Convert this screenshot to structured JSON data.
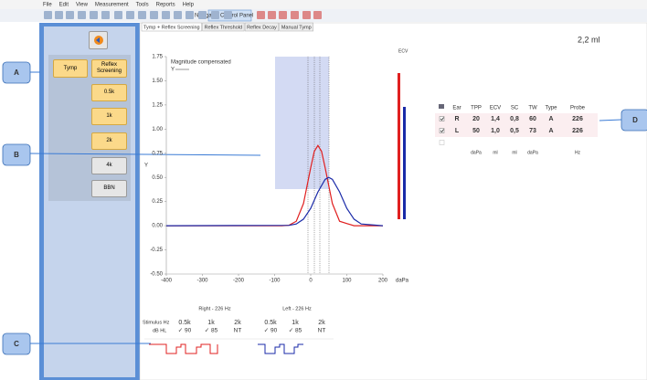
{
  "menu": [
    "File",
    "Edit",
    "View",
    "Measurement",
    "Tools",
    "Reports",
    "Help"
  ],
  "toolbar": {
    "navigator": "Navigator",
    "control_panel": "Control Panel"
  },
  "tabs": [
    "Tymp + Reflex Screening",
    "Reflex Threshold",
    "Reflex Decay",
    "Manual Tymp"
  ],
  "left_panel": {
    "mode_buttons": [
      "Tymp",
      "Reflex Screening"
    ],
    "stimulus_buttons": [
      "0.5k",
      "1k",
      "2k",
      "4k",
      "BBN"
    ]
  },
  "callouts": [
    "A",
    "B",
    "C",
    "D"
  ],
  "volume": "2,2 ml",
  "chart_data": {
    "type": "line",
    "annotations": [
      "Magnitude compensated",
      "Y"
    ],
    "y_label": "Y",
    "x_unit": "daPa",
    "ecv_label": "ECV",
    "series": [
      {
        "name": "Right",
        "color": "#e02020",
        "x": [
          -400,
          -80,
          -60,
          -40,
          -20,
          0,
          10,
          20,
          30,
          40,
          60,
          80,
          120,
          200
        ],
        "values": [
          0,
          0,
          0.005,
          0.046,
          0.23,
          0.6,
          0.77,
          0.83,
          0.77,
          0.6,
          0.23,
          0.046,
          0,
          0
        ]
      },
      {
        "name": "Left",
        "color": "#1a2aa8",
        "x": [
          -400,
          -60,
          -40,
          -20,
          0,
          20,
          40,
          50,
          60,
          80,
          100,
          120,
          140,
          200
        ],
        "values": [
          0,
          0.004,
          0.018,
          0.068,
          0.18,
          0.35,
          0.48,
          0.5,
          0.48,
          0.35,
          0.18,
          0.068,
          0.018,
          0
        ]
      }
    ],
    "xlim": [
      -400,
      200
    ],
    "ylim": [
      -0.5,
      1.75
    ],
    "xticks": [
      -400,
      -300,
      -200,
      -100,
      0,
      100,
      200
    ],
    "yticks": [
      {
        "value": -0.5,
        "label": "-0.50"
      },
      {
        "value": -0.25,
        "label": "-0.25"
      },
      {
        "value": 0,
        "label": "0.00"
      },
      {
        "value": 0.25,
        "label": "0.25"
      },
      {
        "value": 0.5,
        "label": "0.50"
      },
      {
        "value": 0.75,
        "label": "0.75"
      },
      {
        "value": 1,
        "label": "1.00"
      },
      {
        "value": 1.25,
        "label": "1.25"
      },
      {
        "value": 1.5,
        "label": "1.50"
      },
      {
        "value": 1.75,
        "label": "1.75"
      }
    ]
  },
  "results_table": {
    "header": [
      "Ear",
      "TPP",
      "ECV",
      "SC",
      "TW",
      "Type",
      "Probe"
    ],
    "rows": [
      [
        "R",
        "20",
        "1,4",
        "0,8",
        "60",
        "A",
        "226"
      ],
      [
        "L",
        "50",
        "1,0",
        "0,5",
        "73",
        "A",
        "226"
      ]
    ],
    "units": [
      null,
      "daPa",
      "ml",
      "ml",
      "daPa",
      null,
      "Hz"
    ]
  },
  "reflex": {
    "stimulus_label": "Stimulus Hz",
    "level_label": "dB HL",
    "ears": [
      {
        "title": "Right - 226 Hz",
        "frequencies": [
          "0.5k",
          "1k",
          "2k"
        ],
        "results": [
          "✓ 90",
          "✓ 85",
          "NT"
        ]
      },
      {
        "title": "Left - 226 Hz",
        "frequencies": [
          "0.5k",
          "1k",
          "2k"
        ],
        "results": [
          "✓ 90",
          "✓ 85",
          "NT"
        ]
      }
    ]
  }
}
